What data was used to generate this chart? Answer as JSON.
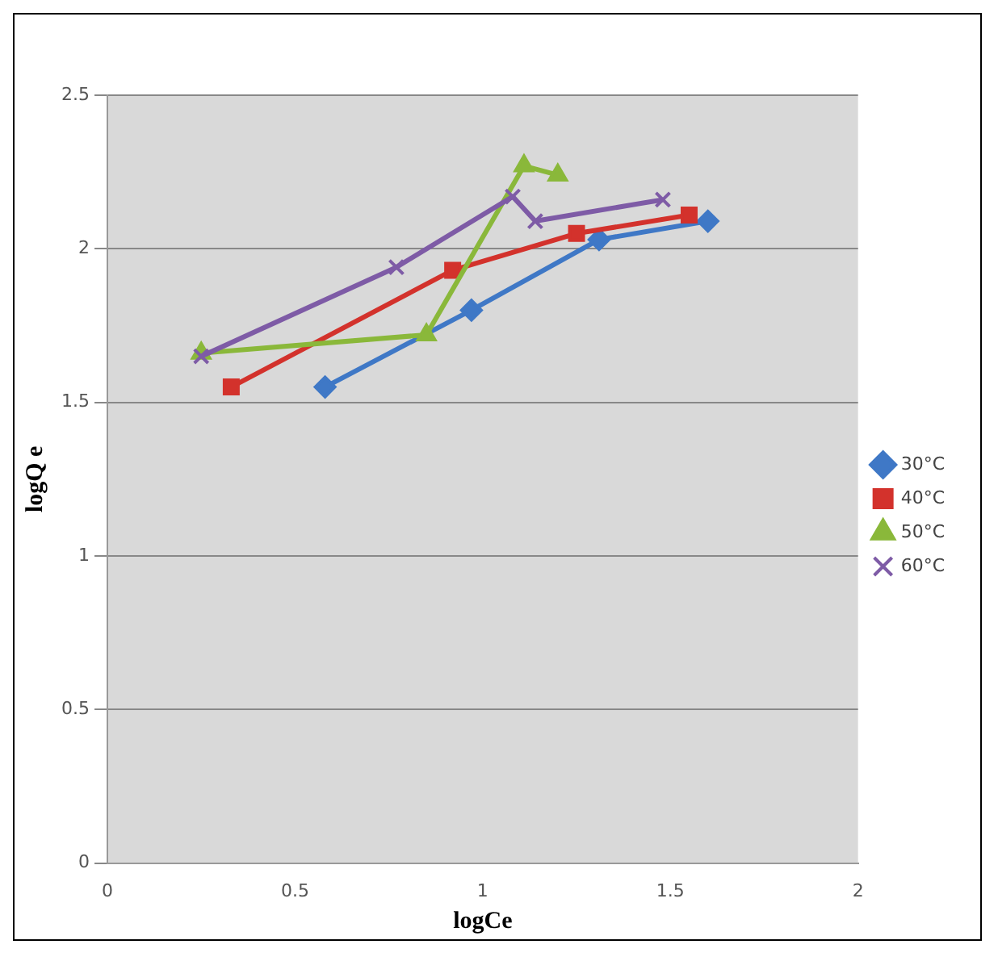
{
  "chart_data": {
    "type": "line",
    "xlabel": "logCe",
    "ylabel": "logQ e",
    "xlim": [
      0,
      2
    ],
    "xticks": [
      0,
      0.5,
      1,
      1.5,
      2
    ],
    "ylim": [
      0,
      2.5
    ],
    "yticks": [
      0,
      0.5,
      1,
      1.5,
      2,
      2.5
    ],
    "grid": "y",
    "legend": "right",
    "series": [
      {
        "name": "30°C",
        "color": "#3f78c6",
        "marker": "diamond",
        "x": [
          0.58,
          0.97,
          1.31,
          1.6
        ],
        "values": [
          1.55,
          1.8,
          2.03,
          2.09
        ]
      },
      {
        "name": "40°C",
        "color": "#d3322c",
        "marker": "square",
        "x": [
          0.33,
          0.92,
          1.25,
          1.55
        ],
        "values": [
          1.55,
          1.93,
          2.05,
          2.11
        ]
      },
      {
        "name": "50°C",
        "color": "#8ab83a",
        "marker": "triangle",
        "x": [
          0.25,
          0.85,
          1.11,
          1.2
        ],
        "values": [
          1.66,
          1.72,
          2.27,
          2.24
        ]
      },
      {
        "name": "60°C",
        "color": "#7e5ba6",
        "marker": "cross",
        "x": [
          0.25,
          0.77,
          1.08,
          1.14,
          1.48
        ],
        "values": [
          1.65,
          1.94,
          2.17,
          2.09,
          2.16
        ]
      }
    ]
  }
}
